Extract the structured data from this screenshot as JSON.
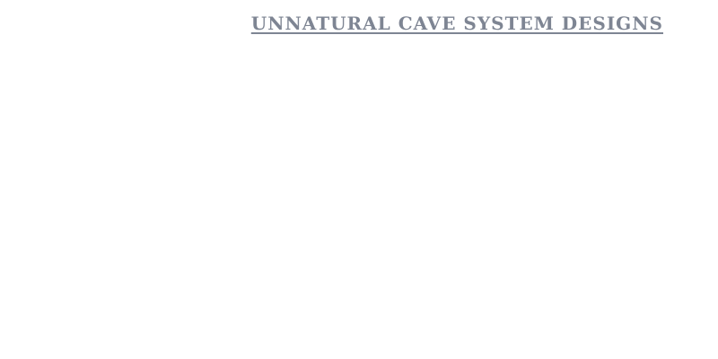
{
  "header": {
    "title": "UNNATURAL CAVE SYSTEM DESIGNS",
    "title_color": "#7e8593"
  }
}
